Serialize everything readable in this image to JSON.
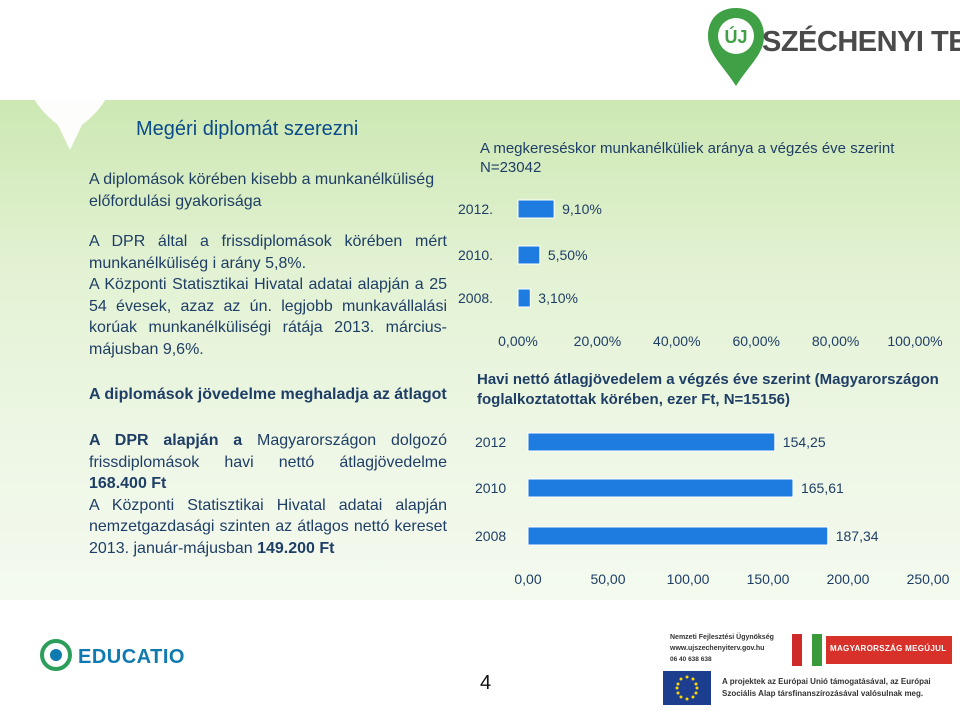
{
  "header": {
    "logo_text": "SZÉCHENYI TERV",
    "logo_badge": "ÚJ"
  },
  "left": {
    "title": "Megéri diplomát szerezni",
    "section1_heading": "A diplomások körében kisebb a munkanélküliség előfordulási gyakorisága",
    "section1_text_1": "A DPR által a frissdiplomások körében mért munkanélküliség i arány 5,8%.",
    "section1_text_2": "A Központi Statisztikai Hivatal adatai alapján a 25 54 évesek, azaz az ún. legjobb munkavállalási korúak munkanélküliségi rátája 2013. március-májusban 9,6%.",
    "section2_heading": "A diplomások jövedelme meghaladja az átlagot",
    "section2_text_1_bold": "A DPR alapján a",
    "section2_text_1_rest": " Magyarországon dolgozó frissdiplomások havi nettó átlagjövedelme ",
    "section2_text_1_value": "168.400 Ft",
    "section2_text_2": "A Központi Statisztikai Hivatal adatai alapján nemzetgazdasági szinten az átlagos nettó kereset 2013. január-májusban ",
    "section2_text_2_value": "149.200 Ft"
  },
  "chart_data": [
    {
      "type": "bar",
      "orientation": "horizontal",
      "title": "A megkereséskor munkanélküliek aránya a végzés éve szerint N=23042",
      "categories": [
        "2012.",
        "2010.",
        "2008."
      ],
      "values": [
        9.1,
        5.5,
        3.1
      ],
      "value_labels": [
        "9,10%",
        "5,50%",
        "3,10%"
      ],
      "xlim": [
        0,
        100
      ],
      "x_ticks": [
        "0,00%",
        "20,00%",
        "40,00%",
        "60,00%",
        "80,00%",
        "100,00%"
      ],
      "bar_color": "#1e7be0",
      "grid": false
    },
    {
      "type": "bar",
      "orientation": "horizontal",
      "title": "Havi nettó átlagjövedelem a végzés éve szerint (Magyarországon foglalkoztatottak körében, ezer Ft, N=15156)",
      "categories": [
        "2012",
        "2010",
        "2008"
      ],
      "values": [
        154.25,
        165.61,
        187.34
      ],
      "value_labels": [
        "154,25",
        "165,61",
        "187,34"
      ],
      "xlim": [
        0,
        250
      ],
      "x_ticks": [
        "0,00",
        "50,00",
        "100,00",
        "150,00",
        "200,00",
        "250,00"
      ],
      "bar_color": "#1e7be0",
      "grid": false
    }
  ],
  "footer": {
    "page_number": "4",
    "educatio": "EDUCATIO",
    "nfu_line1": "Nemzeti Fejlesztési Ügynökség",
    "nfu_line2": "www.ujszechenyiterv.gov.hu",
    "nfu_line3": "06 40 638 638",
    "mm_text": "MAGYARORSZÁG MEGÚJUL",
    "eu_line1": "A projektek az Európai Unió támogatásával, az Európai",
    "eu_line2": "Szociális Alap társfinanszírozásával valósulnak meg.",
    "colors": {
      "accent_green": "#4fa43a",
      "brand_blue": "#0b4a8b",
      "bar_blue": "#1e7be0"
    }
  }
}
